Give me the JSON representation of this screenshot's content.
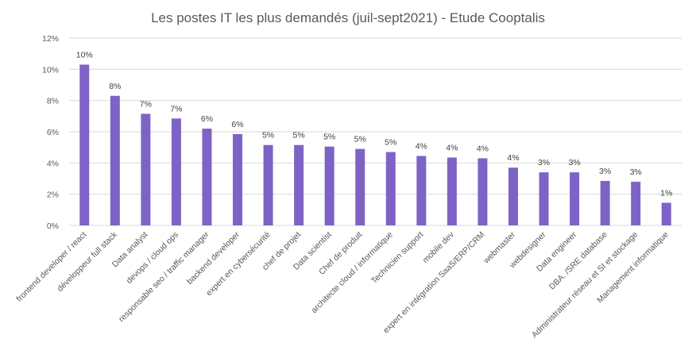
{
  "chart_data": {
    "type": "bar",
    "title": "Les postes IT les plus demandés (juil-sept2021) - Etude Cooptalis",
    "categories": [
      "frontend developer / react",
      "développeur full stack",
      "Data analyst",
      "devops / cloud ops",
      "responsable seo / traffic manager",
      "backend developer",
      "expert en cybersécurité",
      "chef de projet",
      "Data scientist",
      "Chef de produit",
      "architecte cloud / informatique",
      "Technicien support",
      "mobile dev",
      "expert en intégration SaaS/ERP/CRM",
      "webmaster",
      "webdesigner",
      "Data engineer",
      "DBA. /SRE database",
      "Administrateur réseau et SI et stockage",
      "Management informatique"
    ],
    "values": [
      10.3,
      8.3,
      7.15,
      6.85,
      6.2,
      5.85,
      5.15,
      5.15,
      5.05,
      4.9,
      4.7,
      4.45,
      4.35,
      4.3,
      3.7,
      3.4,
      3.4,
      2.85,
      2.8,
      1.45
    ],
    "data_labels": [
      "10%",
      "8%",
      "7%",
      "7%",
      "6%",
      "6%",
      "5%",
      "5%",
      "5%",
      "5%",
      "5%",
      "4%",
      "4%",
      "4%",
      "4%",
      "3%",
      "3%",
      "3%",
      "3%",
      "1%"
    ],
    "y_ticks": [
      "0%",
      "2%",
      "4%",
      "6%",
      "8%",
      "10%",
      "12%"
    ],
    "ylim": [
      0,
      12
    ],
    "grid": true,
    "legend": "none",
    "bar_color": "#7e63c6"
  }
}
